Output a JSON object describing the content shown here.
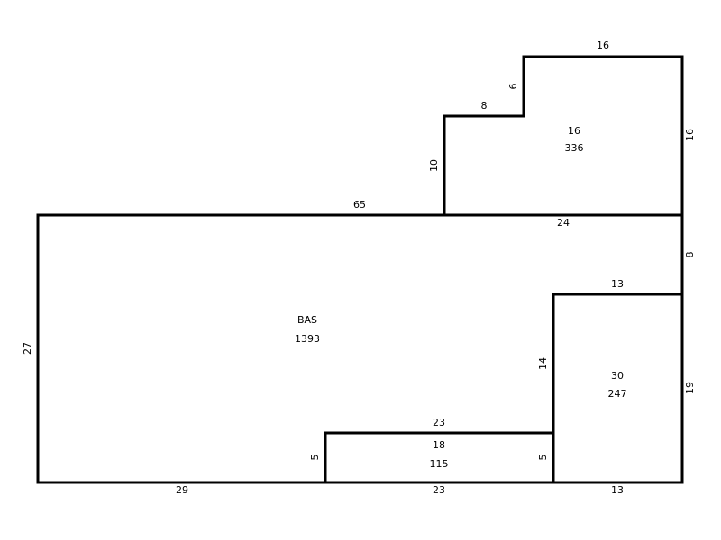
{
  "dimensions": [
    16,
    6,
    8,
    16,
    10,
    65,
    24,
    8,
    13,
    27,
    14,
    19,
    23,
    5,
    5,
    29,
    23,
    13
  ],
  "areas": [
    {
      "code": 16,
      "area": 336
    },
    {
      "code": "BAS",
      "area": 1393
    },
    {
      "code": 30,
      "area": 247
    },
    {
      "code": 18,
      "area": 115
    }
  ]
}
